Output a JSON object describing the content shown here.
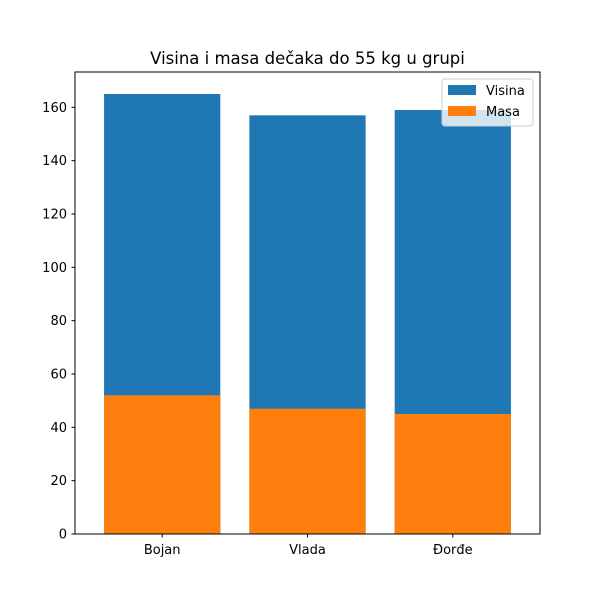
{
  "chart_data": {
    "type": "bar",
    "title": "Visina i masa dečaka do 55 kg u grupi",
    "xlabel": "",
    "ylabel": "",
    "categories": [
      "Bojan",
      "Vlada",
      "Đorđe"
    ],
    "series": [
      {
        "name": "Visina",
        "values": [
          165,
          157,
          159
        ],
        "color": "#1f77b4"
      },
      {
        "name": "Masa",
        "values": [
          52,
          47,
          45
        ],
        "color": "#ff7f0e"
      }
    ],
    "overlay": true,
    "ylim": [
      0,
      173.25
    ],
    "yticks": [
      0,
      20,
      40,
      60,
      80,
      100,
      120,
      140,
      160
    ],
    "grid": false,
    "legend_position": "top-right"
  }
}
